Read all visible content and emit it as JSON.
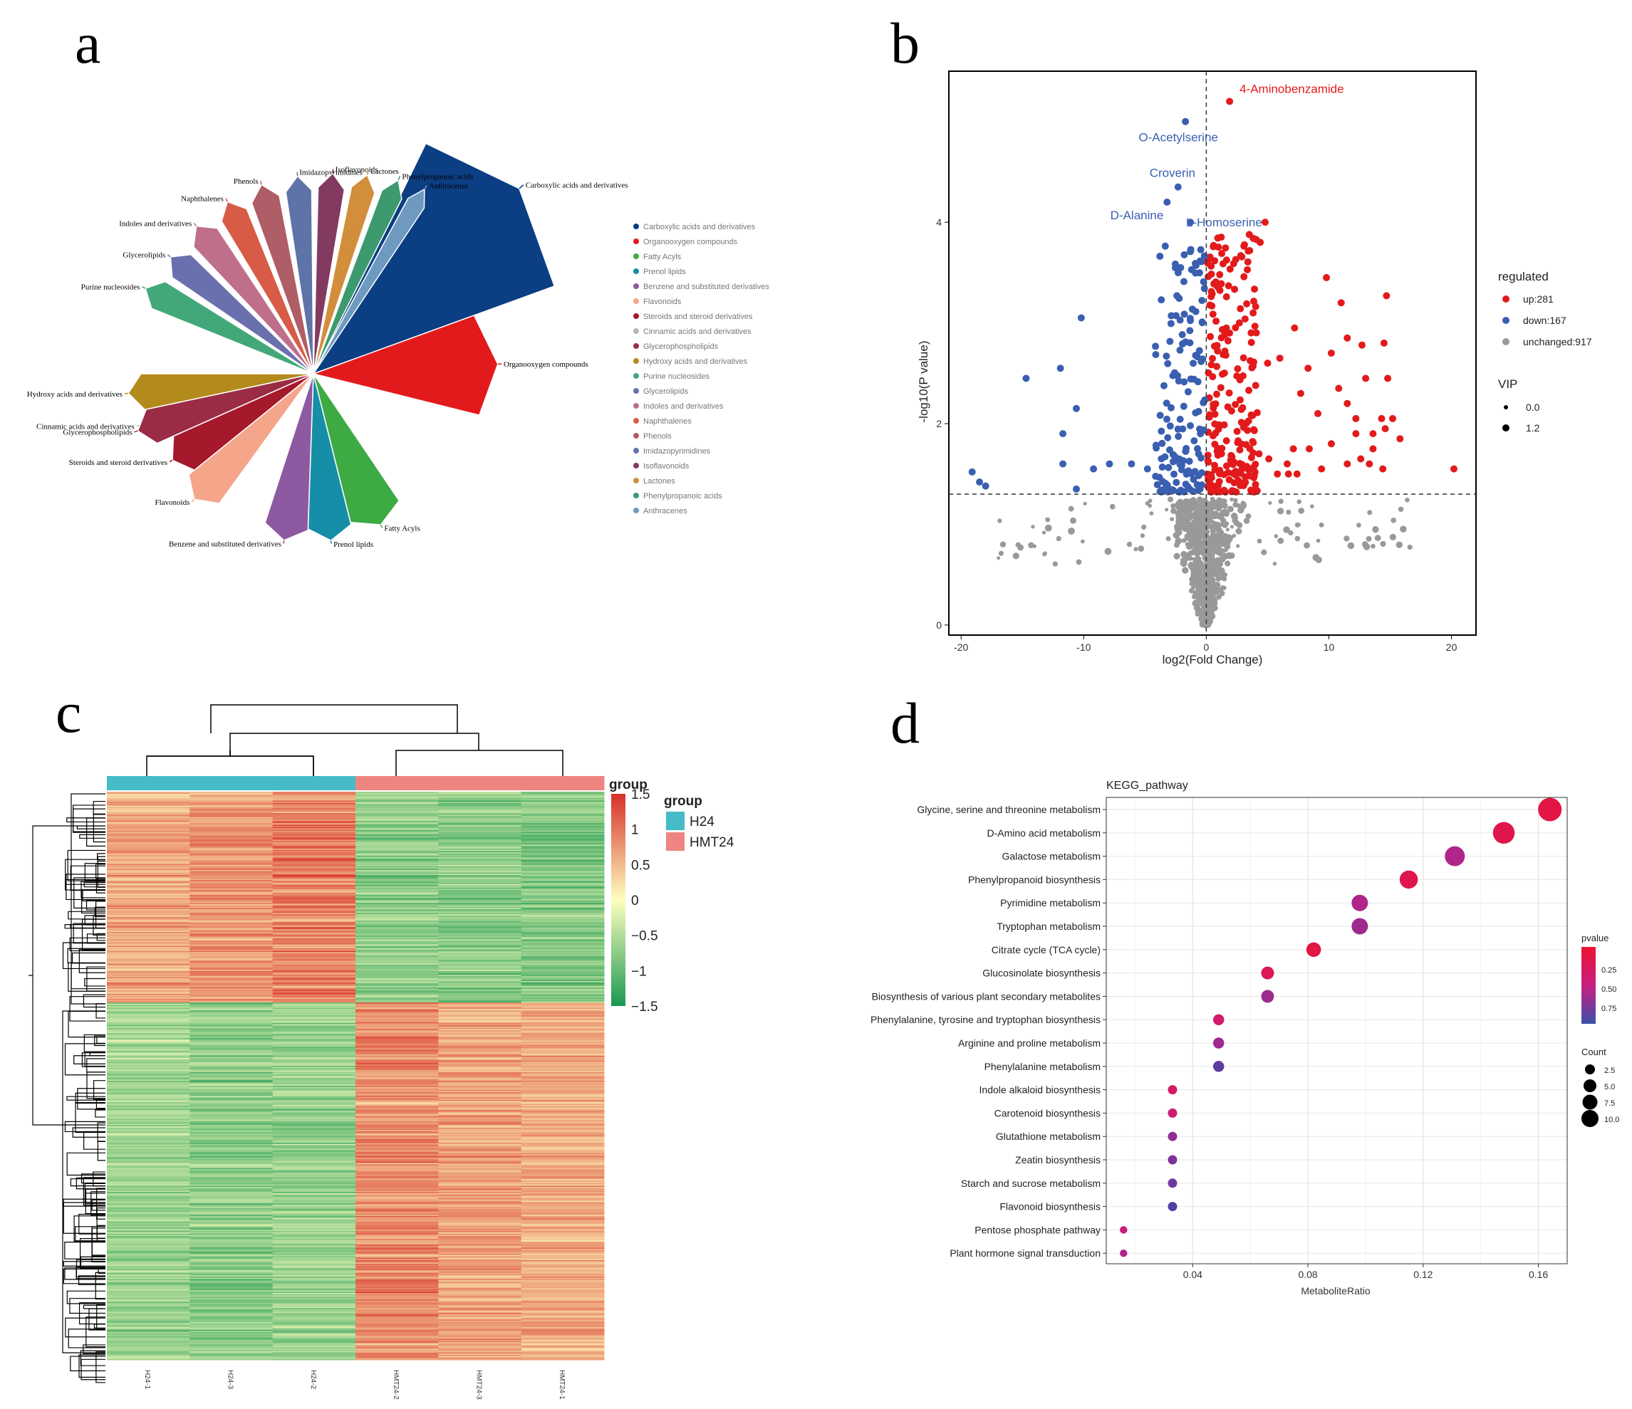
{
  "panels": {
    "a": "a",
    "b": "b",
    "c": "c",
    "d": "d"
  },
  "colors": {
    "up": "#e31a1c",
    "down": "#3a5fb0",
    "unchanged": "#999999",
    "h24": "#45bcc8",
    "hmt24": "#ee8580",
    "border": "#000000"
  },
  "chart_data": [
    {
      "id": "a",
      "type": "pie",
      "title": "",
      "legend_position": "right",
      "categories": [
        "Carboxylic acids and derivatives",
        "Organooxygen compounds",
        "Fatty Acyls",
        "Prenol lipids",
        "Benzene and substituted derivatives",
        "Flavonoids",
        "Steroids and steroid derivatives",
        "Cinnamic acids and derivatives",
        "Glycerophospholipids",
        "Hydroxy acids and derivatives",
        "Purine nucleosides",
        "Glycerolipids",
        "Indoles and derivatives",
        "Naphthalenes",
        "Phenols",
        "Imidazopyrimidines",
        "Isoflavonoids",
        "Lactones",
        "Phenylpropanoic acids",
        "Anthracenes"
      ],
      "values": [
        40,
        34,
        15,
        11,
        13,
        12,
        12,
        12,
        8,
        8,
        8,
        8,
        8,
        8,
        8,
        8,
        8,
        5,
        5,
        5
      ],
      "colors": [
        "#0b3e82",
        "#e31a1c",
        "#3eaa44",
        "#168ea8",
        "#8d59a0",
        "#f4a58a",
        "#a6182b",
        "#b3b7b6",
        "#9a2c45",
        "#b38a1c",
        "#43a879",
        "#6a70ad",
        "#bf6e8c",
        "#d75b47",
        "#af5d66",
        "#5e73a8",
        "#833a60",
        "#d28e3b",
        "#3d9a6f",
        "#6e9ac0"
      ],
      "label_anchor": [
        "Carboxylic acids and derivatives",
        "Organooxygen compounds",
        "Fatty Acyls",
        "Prenol lipids",
        "Benzene and substituted derivatives",
        "Flavonoids",
        "Steroids and steroid derivatives",
        "Cinnamic acids and derivatives",
        "Glycerophospholipids",
        "Hydroxy acids and derivatives",
        "Purine nucleosides",
        "Glycerolipids",
        "Indoles and derivatives",
        "Naphthalenes",
        "Phenols",
        "Imidazopyrimidines",
        "Isoflavonoids",
        "Lactones",
        "Phenylpropanoic acids",
        "Anthracenes"
      ]
    },
    {
      "id": "b",
      "type": "scatter",
      "title": "",
      "xlabel": "log2(Fold Change)",
      "ylabel": "-log10(P value)",
      "xlim": [
        -21,
        22
      ],
      "ylim": [
        -0.1,
        5.5
      ],
      "xticks": [
        -20,
        -10,
        0,
        10,
        20
      ],
      "yticks": [
        0,
        2,
        4
      ],
      "hline": 1.3,
      "vline": 0,
      "legend_position": "right",
      "legend": {
        "title": "regulated",
        "items": [
          {
            "label": "up:281",
            "color_key": "up"
          },
          {
            "label": "down:167",
            "color_key": "down"
          },
          {
            "label": "unchanged:917",
            "color_key": "unchanged"
          }
        ],
        "vip_title": "VIP",
        "vip_items": [
          "0.0",
          "1.2"
        ]
      },
      "counts": {
        "up": 281,
        "down": 167,
        "unchanged": 917
      },
      "annotations": [
        {
          "text": "4-Aminobenzamide",
          "x": 1.9,
          "y": 5.2,
          "group": "up"
        },
        {
          "text": "O-Acetylserine",
          "x": -1.7,
          "y": 5.0,
          "group": "down"
        },
        {
          "text": "Croverin",
          "x": -2.3,
          "y": 4.35,
          "group": "down"
        },
        {
          "text": "D-Alanine",
          "x": -3.2,
          "y": 4.2,
          "group": "down"
        },
        {
          "text": "L-Homoserine",
          "x": -1.3,
          "y": 4.0,
          "group": "down"
        }
      ],
      "points_up": [
        [
          1.9,
          5.2
        ],
        [
          4.8,
          4.0
        ],
        [
          4.4,
          3.8
        ],
        [
          9.8,
          3.45
        ],
        [
          11,
          3.2
        ],
        [
          14.7,
          3.27
        ],
        [
          11.5,
          2.85
        ],
        [
          14.5,
          2.8
        ],
        [
          12.7,
          2.78
        ],
        [
          7.2,
          2.95
        ],
        [
          10.2,
          2.7
        ],
        [
          8.3,
          2.55
        ],
        [
          6,
          2.65
        ],
        [
          5,
          2.6
        ],
        [
          13,
          2.45
        ],
        [
          14.8,
          2.45
        ],
        [
          10.8,
          2.35
        ],
        [
          7.7,
          2.3
        ],
        [
          11.5,
          2.2
        ],
        [
          14.3,
          2.05
        ],
        [
          12.2,
          2.05
        ],
        [
          9.1,
          2.1
        ],
        [
          15.2,
          2.05
        ],
        [
          14.6,
          1.95
        ],
        [
          15.8,
          1.85
        ],
        [
          13.6,
          1.9
        ],
        [
          12.2,
          1.9
        ],
        [
          10.2,
          1.8
        ],
        [
          13.6,
          1.75
        ],
        [
          8.4,
          1.75
        ],
        [
          7.1,
          1.75
        ],
        [
          12.6,
          1.65
        ],
        [
          11.5,
          1.6
        ],
        [
          9.4,
          1.55
        ],
        [
          13.3,
          1.6
        ],
        [
          14.4,
          1.55
        ],
        [
          20.2,
          1.55
        ],
        [
          5.1,
          1.65
        ],
        [
          6.6,
          1.6
        ],
        [
          5.8,
          1.5
        ],
        [
          6.7,
          1.5
        ],
        [
          4.3,
          1.7
        ],
        [
          7.4,
          1.5
        ]
      ],
      "points_down": [
        [
          -1.7,
          5.0
        ],
        [
          -2.3,
          4.35
        ],
        [
          -3.2,
          4.2
        ],
        [
          -1.3,
          4.0
        ],
        [
          -10.2,
          3.05
        ],
        [
          -11.9,
          2.55
        ],
        [
          -14.7,
          2.45
        ],
        [
          -10.6,
          2.15
        ],
        [
          -11.7,
          1.9
        ],
        [
          -11.7,
          1.6
        ],
        [
          -7.9,
          1.6
        ],
        [
          -6.1,
          1.6
        ],
        [
          -4.8,
          1.55
        ],
        [
          -18,
          1.38
        ],
        [
          -18.5,
          1.42
        ],
        [
          -19.1,
          1.52
        ],
        [
          -9.2,
          1.55
        ],
        [
          -10.6,
          1.35
        ]
      ],
      "up_scatter_box": {
        "xmin": 0.1,
        "xmax": 4.2,
        "ymin": 1.32,
        "ymax": 3.9,
        "n": 220
      },
      "down_scatter_box": {
        "xmin": -4.2,
        "xmax": -0.1,
        "ymin": 1.32,
        "ymax": 3.8,
        "n": 145
      },
      "unchanged_region": {
        "ymax": 1.3,
        "n": 917
      }
    },
    {
      "id": "c",
      "type": "heatmap",
      "title": "",
      "columns": [
        "H24-1",
        "H24-3",
        "H24-2",
        "HMT24-2",
        "HMT24-3",
        "HMT24-1"
      ],
      "column_groups": [
        "H24",
        "H24",
        "H24",
        "HMT24",
        "HMT24",
        "HMT24"
      ],
      "rows": 450,
      "color_scale": {
        "min": -1.5,
        "max": 1.5,
        "low": "#1a9850",
        "mid": "#ffffbf",
        "high": "#d73027"
      },
      "colorbar_ticks": [
        {
          "value": 1.5,
          "label": "1.5"
        },
        {
          "value": 1,
          "label": "1"
        },
        {
          "value": 0.5,
          "label": "0.5"
        },
        {
          "value": 0,
          "label": "0"
        },
        {
          "value": -0.5,
          "label": "−0.5"
        },
        {
          "value": -1,
          "label": "−1"
        },
        {
          "value": -1.5,
          "label": "−1.5"
        }
      ],
      "colorbar_title": "group",
      "legend": {
        "title": "group",
        "items": [
          {
            "label": "H24",
            "color_key": "h24"
          },
          {
            "label": "HMT24",
            "color_key": "hmt24"
          }
        ]
      },
      "block_split_fraction": 0.37,
      "block_means": {
        "top": [
          0.7,
          0.85,
          1.0,
          -0.8,
          -0.85,
          -0.95
        ],
        "bottom": [
          -0.7,
          -0.85,
          -0.75,
          0.95,
          0.75,
          0.7
        ]
      }
    },
    {
      "id": "d",
      "type": "scatter",
      "subtype": "bubble",
      "title": "KEGG_pathway",
      "xlabel": "MetaboliteRatio",
      "ylabel": "",
      "xlim": [
        0.01,
        0.17
      ],
      "xticks": [
        0.04,
        0.08,
        0.12,
        0.16
      ],
      "legend_position": "right",
      "categories": [
        "Glycine, serine and threonine metabolism",
        "D-Amino acid metabolism",
        "Galactose metabolism",
        "Phenylpropanoid biosynthesis",
        "Pyrimidine metabolism",
        "Tryptophan metabolism",
        "Citrate cycle (TCA cycle)",
        "Glucosinolate biosynthesis",
        "Biosynthesis of various plant secondary metabolites",
        "Phenylalanine, tyrosine and tryptophan biosynthesis",
        "Arginine and proline metabolism",
        "Phenylalanine metabolism",
        "Indole alkaloid biosynthesis",
        "Carotenoid biosynthesis",
        "Glutathione metabolism",
        "Zeatin biosynthesis",
        "Starch and sucrose metabolism",
        "Flavonoid biosynthesis",
        "Pentose phosphate pathway",
        "Plant hormone signal transduction"
      ],
      "x": [
        0.164,
        0.148,
        0.131,
        0.115,
        0.098,
        0.098,
        0.082,
        0.066,
        0.066,
        0.049,
        0.049,
        0.049,
        0.033,
        0.033,
        0.033,
        0.033,
        0.033,
        0.033,
        0.016,
        0.016
      ],
      "pvalue": [
        0.1,
        0.15,
        0.55,
        0.15,
        0.55,
        0.6,
        0.1,
        0.2,
        0.6,
        0.35,
        0.6,
        0.8,
        0.3,
        0.4,
        0.65,
        0.7,
        0.75,
        0.85,
        0.45,
        0.55
      ],
      "count": [
        10,
        9,
        8,
        7,
        6,
        6,
        5,
        4,
        4,
        3,
        3,
        3,
        2,
        2,
        2,
        2,
        2,
        2,
        1,
        1
      ],
      "pvalue_legend": {
        "title": "pvalue",
        "ticks": [
          "0.25",
          "0.50",
          "0.75"
        ]
      },
      "count_legend": {
        "title": "Count",
        "ticks": [
          "2.5",
          "5.0",
          "7.5",
          "10.0"
        ]
      }
    }
  ]
}
